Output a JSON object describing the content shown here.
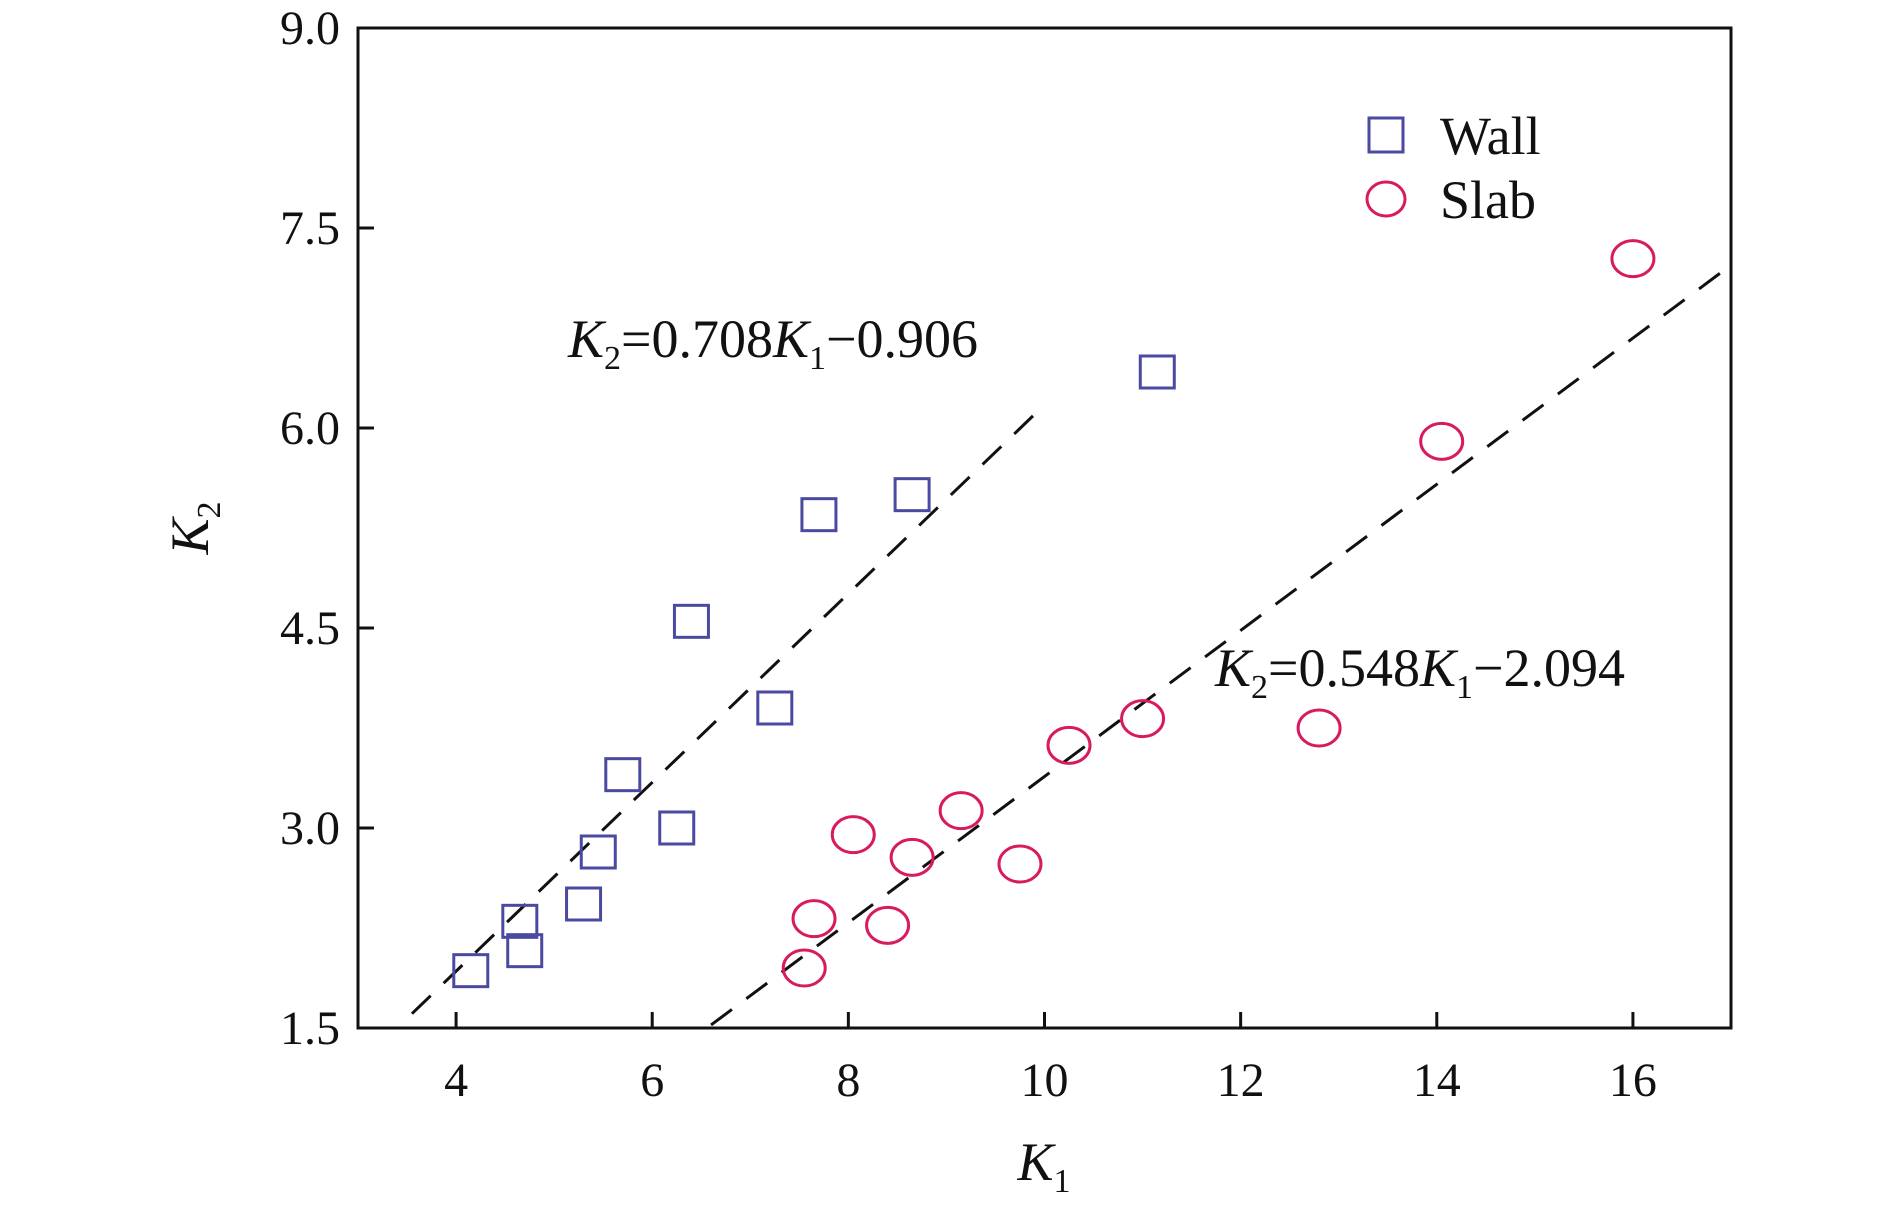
{
  "chart_data": {
    "type": "scatter",
    "title": "",
    "xlabel": {
      "main": "K",
      "sub": "1"
    },
    "ylabel": {
      "main": "K",
      "sub": "2"
    },
    "xlim": [
      3,
      17
    ],
    "ylim": [
      1.5,
      9.0
    ],
    "xticks": [
      4,
      6,
      8,
      10,
      12,
      14,
      16
    ],
    "yticks": [
      1.5,
      3.0,
      4.5,
      6.0,
      7.5,
      9.0
    ],
    "xtick_labels": [
      "4",
      "6",
      "8",
      "10",
      "12",
      "14",
      "16"
    ],
    "ytick_labels": [
      "1.5",
      "3.0",
      "4.5",
      "6.0",
      "7.5",
      "9.0"
    ],
    "grid": false,
    "legend": {
      "position": "top-right"
    },
    "series": [
      {
        "name": "Wall",
        "marker": "square",
        "color": "#4a4aa0",
        "points": [
          [
            4.15,
            1.93
          ],
          [
            4.65,
            2.3
          ],
          [
            4.7,
            2.08
          ],
          [
            5.3,
            2.43
          ],
          [
            5.45,
            2.82
          ],
          [
            5.7,
            3.4
          ],
          [
            6.25,
            3.0
          ],
          [
            6.4,
            4.55
          ],
          [
            7.25,
            3.9
          ],
          [
            7.7,
            5.35
          ],
          [
            8.65,
            5.5
          ],
          [
            11.15,
            6.42
          ]
        ],
        "fit": {
          "slope": 0.708,
          "intercept": -0.906,
          "x_range": [
            3.55,
            10.0
          ],
          "label_parts": [
            "K",
            "2",
            "=0.708",
            "K",
            "1",
            "−0.906"
          ]
        }
      },
      {
        "name": "Slab",
        "marker": "circle",
        "color": "#d81b60",
        "points": [
          [
            7.55,
            1.95
          ],
          [
            7.65,
            2.32
          ],
          [
            8.05,
            2.95
          ],
          [
            8.4,
            2.27
          ],
          [
            8.65,
            2.78
          ],
          [
            9.15,
            3.13
          ],
          [
            9.75,
            2.73
          ],
          [
            10.25,
            3.62
          ],
          [
            11.0,
            3.82
          ],
          [
            12.8,
            3.75
          ],
          [
            14.05,
            5.9
          ],
          [
            16.0,
            7.27
          ]
        ],
        "fit": {
          "slope": 0.548,
          "intercept": -2.094,
          "x_range": [
            6.6,
            17.0
          ],
          "label_parts": [
            "K",
            "2",
            "=0.548",
            "K",
            "1",
            "−2.094"
          ]
        }
      }
    ],
    "colors": {
      "axis": "#111111",
      "fit_line": "#111111"
    }
  }
}
